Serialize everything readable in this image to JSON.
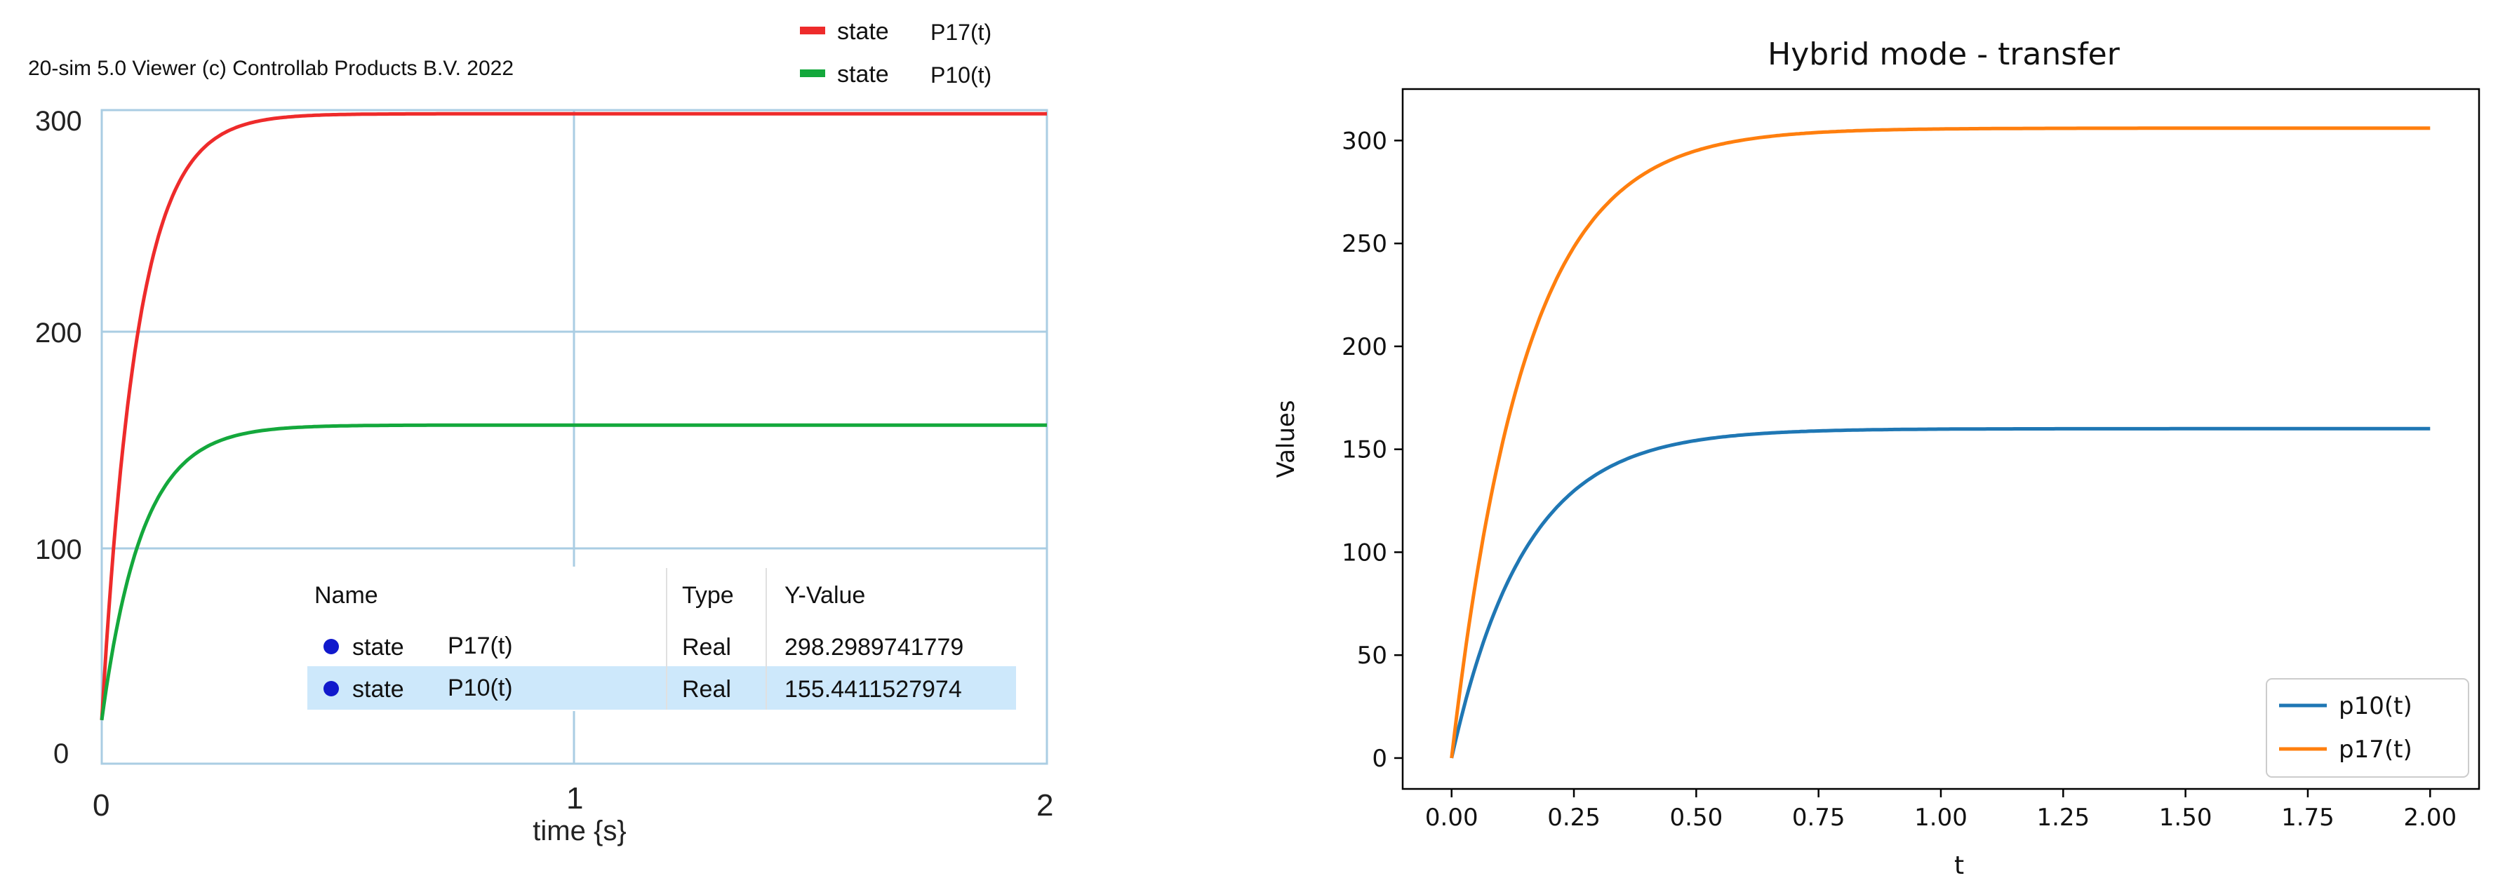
{
  "chart_data": [
    {
      "type": "line",
      "title": "20-sim 5.0 Viewer (c) Controllab Products B.V. 2022",
      "xlabel": "time {s}",
      "ylabel": "",
      "xlim": [
        0,
        2
      ],
      "ylim": [
        0,
        300
      ],
      "x_ticks": [
        0,
        1,
        2
      ],
      "y_ticks": [
        0,
        100,
        200,
        300
      ],
      "grid": true,
      "legend": {
        "placement": "top-right",
        "items": [
          {
            "prefix": "state",
            "name": "P17(t)",
            "color": "#ee2b2b"
          },
          {
            "prefix": "state",
            "name": "P10(t)",
            "color": "#14a83c"
          }
        ]
      },
      "series": [
        {
          "name": "P17(t)",
          "color": "#ee2b2b",
          "start": 20,
          "final": 298.3,
          "tau": 0.075
        },
        {
          "name": "P10(t)",
          "color": "#14a83c",
          "start": 20,
          "final": 155.4,
          "tau": 0.085
        }
      ],
      "table": {
        "headers": [
          "Name",
          "Type",
          "Y-Value"
        ],
        "rows": [
          {
            "prefix": "state",
            "name": "P17(t)",
            "type": "Real",
            "value": "298.2989741779",
            "selected": false
          },
          {
            "prefix": "state",
            "name": "P10(t)",
            "type": "Real",
            "value": "155.4411527974",
            "selected": true
          }
        ]
      }
    },
    {
      "type": "line",
      "title": "Hybrid mode - transfer",
      "xlabel": "t",
      "ylabel": "Values",
      "xlim": [
        -0.1,
        2.1
      ],
      "ylim": [
        -15,
        325
      ],
      "x_ticks": [
        0.0,
        0.25,
        0.5,
        0.75,
        1.0,
        1.25,
        1.5,
        1.75,
        2.0
      ],
      "x_tick_labels": [
        "0.00",
        "0.25",
        "0.50",
        "0.75",
        "1.00",
        "1.25",
        "1.50",
        "1.75",
        "2.00"
      ],
      "y_ticks": [
        0,
        50,
        100,
        150,
        200,
        250,
        300
      ],
      "grid": false,
      "legend": {
        "placement": "bottom-right"
      },
      "series": [
        {
          "name": "p10(t)",
          "color": "#1f77b4",
          "start": 0,
          "final": 160.0,
          "tau": 0.15
        },
        {
          "name": "p17(t)",
          "color": "#ff7f0e",
          "start": 0,
          "final": 306.0,
          "tau": 0.15
        }
      ]
    }
  ]
}
